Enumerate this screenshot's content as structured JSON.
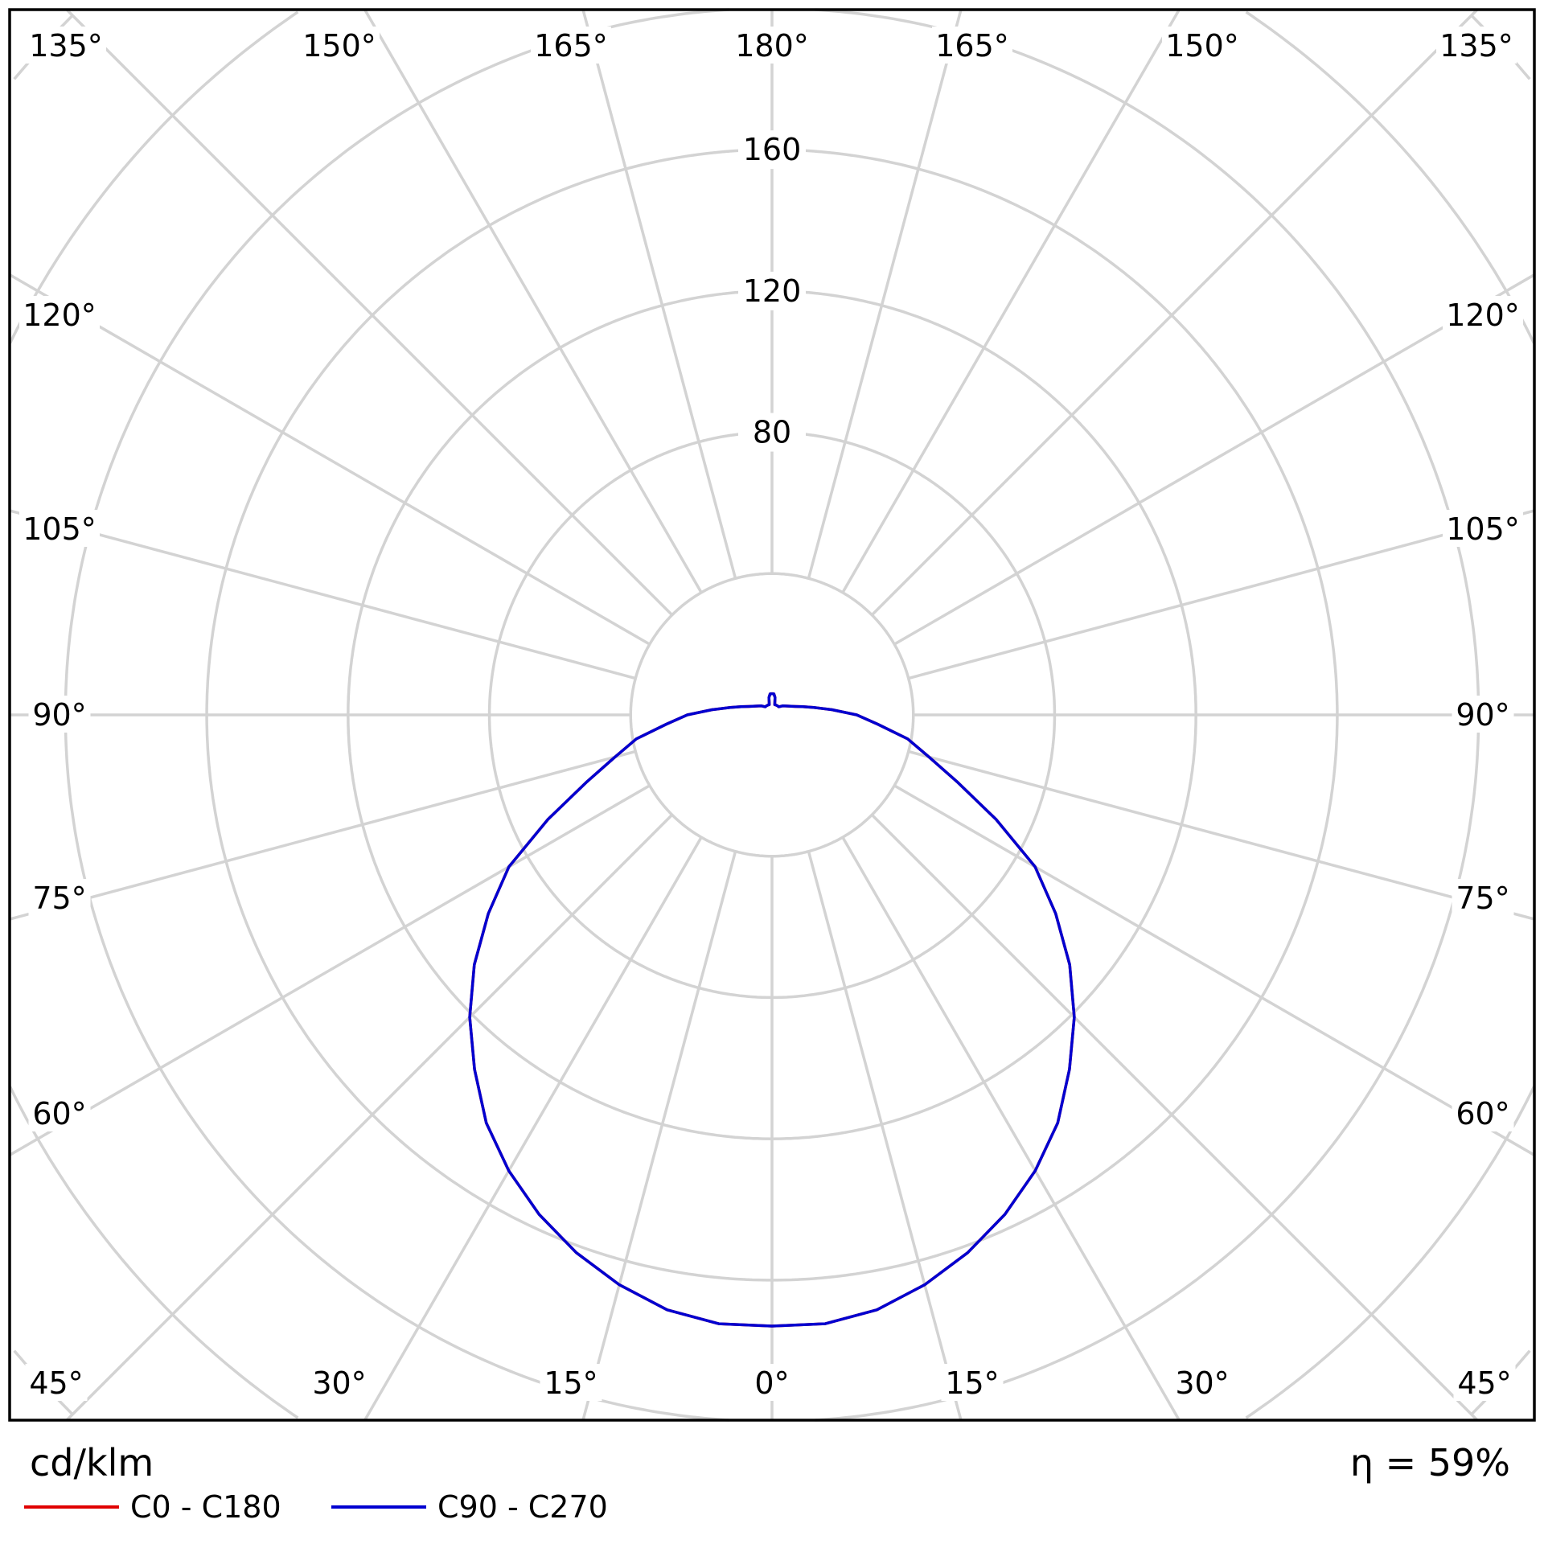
{
  "chart_data": {
    "type": "polar",
    "unit_label": "cd/klm",
    "efficiency_label": "η = 59%",
    "radial_ticks": [
      40,
      80,
      120,
      160,
      200,
      240,
      280
    ],
    "radial_tick_labels": [
      "80",
      "120",
      "160"
    ],
    "angle_labels": {
      "top": [
        "135°",
        "150°",
        "165°",
        "180°",
        "165°",
        "150°",
        "135°"
      ],
      "left": [
        "120°",
        "105°",
        "90°",
        "75°",
        "60°"
      ],
      "right": [
        "120°",
        "105°",
        "90°",
        "75°",
        "60°"
      ],
      "bottom": [
        "45°",
        "30°",
        "15°",
        "0°",
        "15°",
        "30°",
        "45°"
      ]
    },
    "grid": true,
    "legend_position": "bottom-left",
    "angles_deg": [
      0,
      5,
      10,
      15,
      20,
      25,
      30,
      35,
      40,
      45,
      50,
      55,
      60,
      65,
      70,
      75,
      80,
      85,
      90,
      95,
      100,
      105,
      110,
      120,
      130,
      140,
      150,
      160,
      165,
      170,
      175,
      180
    ],
    "series": [
      {
        "name": "C0 - C180",
        "color": "#e00000",
        "values": [
          173,
          173,
          171,
          167,
          162,
          156,
          149,
          141,
          131,
          121,
          110,
          98,
          86,
          70,
          56,
          46,
          39,
          30,
          24,
          17,
          12,
          9,
          7,
          5,
          4,
          3,
          3,
          3,
          3,
          5,
          6,
          6
        ]
      },
      {
        "name": "C90 - C270",
        "color": "#0000d0",
        "values": [
          173,
          173,
          171,
          167,
          162,
          156,
          149,
          141,
          131,
          121,
          110,
          98,
          86,
          70,
          56,
          46,
          39,
          30,
          24,
          17,
          12,
          9,
          7,
          5,
          4,
          3,
          3,
          3,
          3,
          5,
          6,
          6
        ]
      }
    ]
  }
}
